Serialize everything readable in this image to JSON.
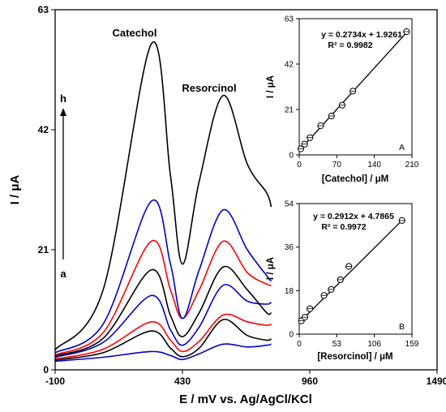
{
  "chart_data": [
    {
      "type": "line",
      "title": "",
      "xlabel": "E / mV vs. Ag/AgCl/KCl",
      "ylabel": "I / μA",
      "xlim": [
        -100,
        1490
      ],
      "ylim": [
        0,
        63
      ],
      "xticks": [
        "-100",
        "430",
        "960",
        "1490"
      ],
      "yticks": [
        "0",
        "21",
        "42",
        "63"
      ],
      "annotations": {
        "peak1": "Catechol",
        "peak2": "Resorcinol",
        "arrow_top": "h",
        "arrow_bottom": "a"
      },
      "series": [
        {
          "color": "#0000cc",
          "x": [
            -100,
            100,
            300,
            380,
            430,
            500,
            600,
            700,
            780,
            800
          ],
          "y": [
            1.5,
            2.2,
            3.2,
            2.5,
            1.8,
            2.8,
            4.5,
            4.0,
            4.3,
            4.5
          ]
        },
        {
          "color": "#000000",
          "x": [
            -100,
            100,
            300,
            380,
            430,
            500,
            600,
            700,
            780,
            800
          ],
          "y": [
            1.7,
            3.0,
            6.8,
            3.8,
            2.3,
            3.8,
            8.8,
            6.0,
            5.2,
            5.4
          ]
        },
        {
          "color": "#ff0000",
          "x": [
            -100,
            100,
            300,
            380,
            430,
            500,
            600,
            700,
            780,
            800
          ],
          "y": [
            1.9,
            3.6,
            8.4,
            5.2,
            3.2,
            5.0,
            9.6,
            8.4,
            7.8,
            8.0
          ]
        },
        {
          "color": "#0000cc",
          "x": [
            -100,
            100,
            300,
            380,
            430,
            500,
            600,
            700,
            780,
            800
          ],
          "y": [
            2.2,
            4.8,
            13.0,
            7.0,
            4.3,
            7.5,
            14.8,
            12.0,
            11.5,
            11.8
          ]
        },
        {
          "color": "#000000",
          "x": [
            -100,
            100,
            300,
            380,
            430,
            500,
            600,
            700,
            780,
            800
          ],
          "y": [
            2.4,
            5.5,
            17.5,
            9.5,
            5.8,
            10.0,
            18.0,
            14.0,
            10.0,
            10.0
          ]
        },
        {
          "color": "#ff0000",
          "x": [
            -100,
            100,
            300,
            380,
            430,
            500,
            600,
            700,
            780,
            800
          ],
          "y": [
            2.6,
            6.5,
            22.5,
            14.0,
            9.0,
            14.0,
            22.5,
            17.0,
            15.0,
            14.8
          ]
        },
        {
          "color": "#0000cc",
          "x": [
            -100,
            100,
            300,
            380,
            430,
            500,
            600,
            700,
            780,
            800
          ],
          "y": [
            3.0,
            8.0,
            29.5,
            18.5,
            9.0,
            17.5,
            28.0,
            21.0,
            16.5,
            15.5
          ]
        },
        {
          "color": "#000000",
          "x": [
            -100,
            100,
            300,
            380,
            430,
            500,
            600,
            700,
            780,
            800
          ],
          "y": [
            3.5,
            14.0,
            57.0,
            34.0,
            18.5,
            33.0,
            48.0,
            36.0,
            31.0,
            28.5
          ]
        }
      ]
    },
    {
      "type": "scatter",
      "title": "",
      "xlabel": "[Catechol] / μM",
      "ylabel": "I / μA",
      "xlim": [
        0,
        210
      ],
      "ylim": [
        0,
        63
      ],
      "xticks": [
        "0",
        "70",
        "140",
        "210"
      ],
      "yticks": [
        "0",
        "21",
        "42",
        "63"
      ],
      "equation": "y = 0.2734x + 1.9261",
      "r2": "R² = 0.9982",
      "panel_label": "A",
      "fit": {
        "slope": 0.2734,
        "intercept": 1.9261
      },
      "x": [
        3,
        10,
        20,
        40,
        60,
        80,
        100,
        200
      ],
      "y": [
        2.8,
        5.0,
        8.0,
        13.5,
        18.0,
        23.0,
        29.5,
        57.0
      ]
    },
    {
      "type": "scatter",
      "title": "",
      "xlabel": "[Resorcinol] / μM",
      "ylabel": "I / μA",
      "xlim": [
        0,
        159
      ],
      "ylim": [
        0,
        54
      ],
      "xticks": [
        "0",
        "53",
        "106",
        "159"
      ],
      "yticks": [
        "0",
        "18",
        "36",
        "54"
      ],
      "equation": "y = 0.2912x + 4.7865",
      "r2": "R² = 0.9972",
      "panel_label": "B",
      "fit": {
        "slope": 0.2912,
        "intercept": 4.7865
      },
      "x": [
        3,
        8,
        15,
        35,
        45,
        58,
        70,
        145
      ],
      "y": [
        5.5,
        7.0,
        10.5,
        16.0,
        18.5,
        22.5,
        28.0,
        47.0
      ]
    }
  ]
}
